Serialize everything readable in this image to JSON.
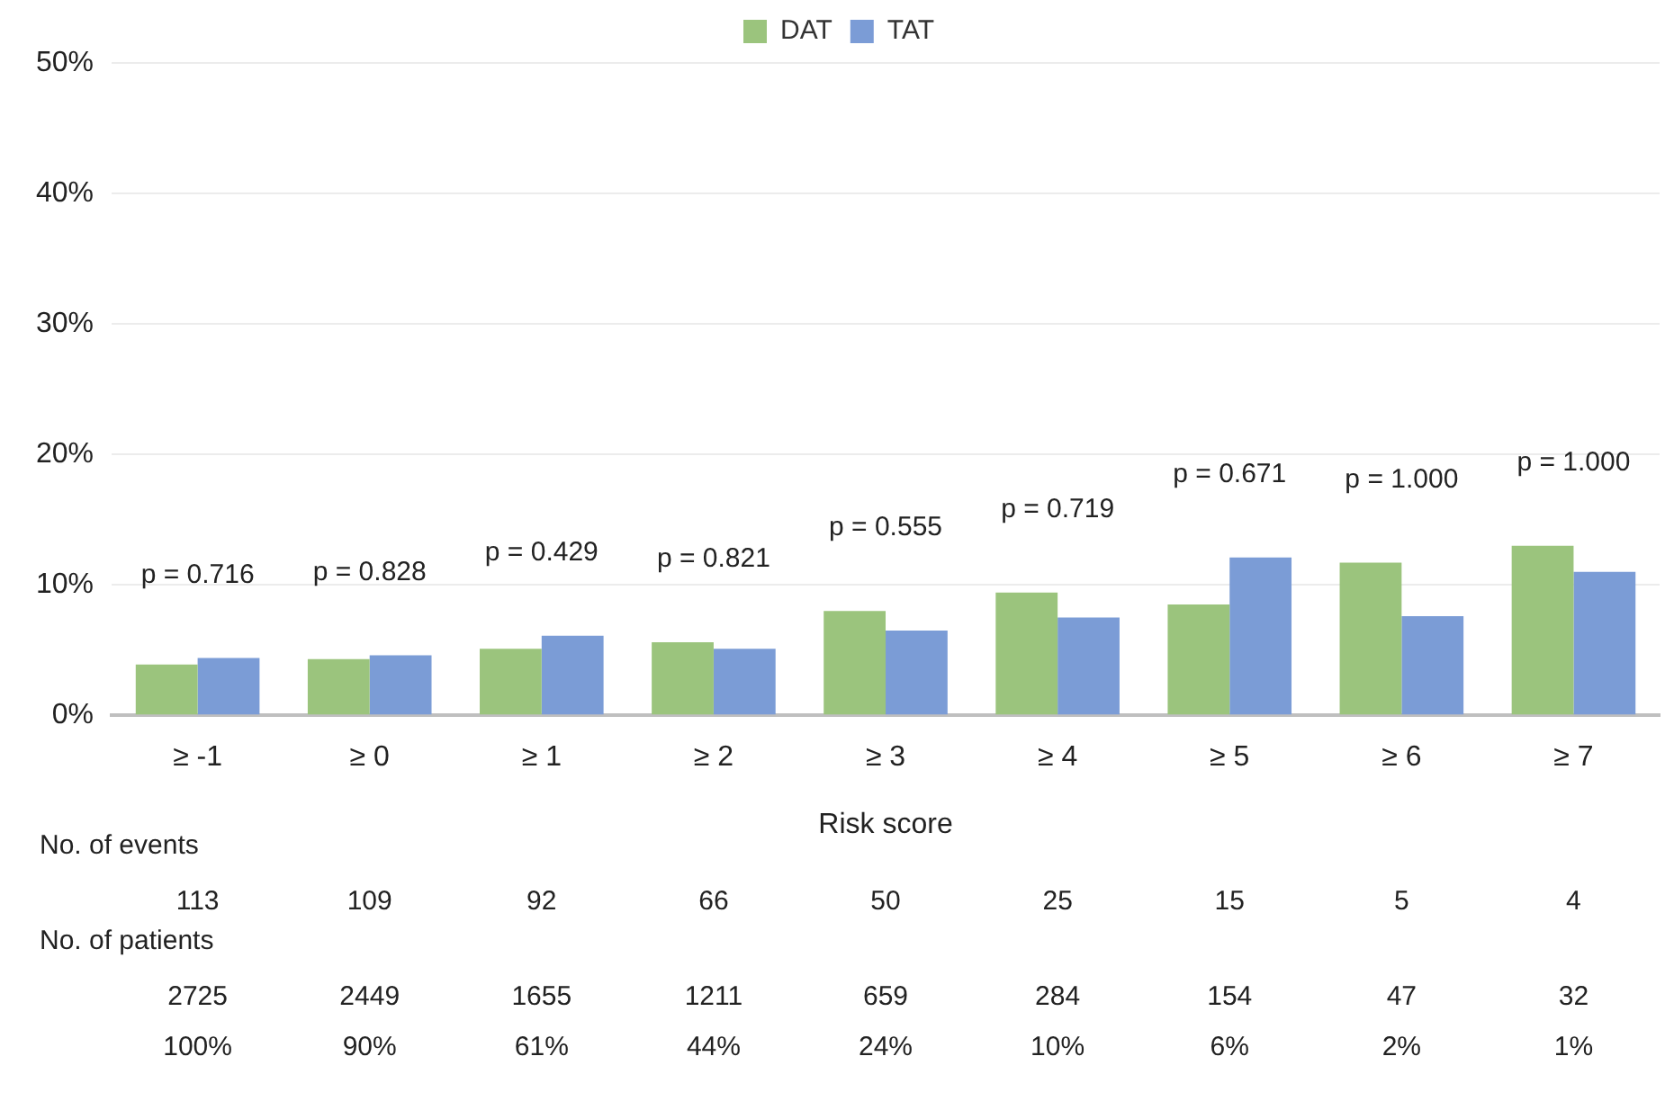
{
  "chart_data": {
    "type": "bar",
    "xlabel": "Risk score",
    "categories": [
      "≥ -1",
      "≥ 0",
      "≥ 1",
      "≥ 2",
      "≥ 3",
      "≥ 4",
      "≥ 5",
      "≥ 6",
      "≥ 7"
    ],
    "series": [
      {
        "name": "DAT",
        "color": "#9bc47d",
        "values": [
          3.9,
          4.3,
          5.1,
          5.6,
          8.0,
          9.4,
          8.5,
          11.7,
          13.0
        ]
      },
      {
        "name": "TAT",
        "color": "#7b9cd6",
        "values": [
          4.4,
          4.6,
          6.1,
          5.1,
          6.5,
          7.5,
          12.1,
          7.6,
          11.0
        ]
      }
    ],
    "ylim": [
      0,
      50
    ],
    "yticks": [
      {
        "value": 0,
        "label": "0%"
      },
      {
        "value": 10,
        "label": "10%"
      },
      {
        "value": 20,
        "label": "20%"
      },
      {
        "value": 30,
        "label": "30%"
      },
      {
        "value": 40,
        "label": "40%"
      },
      {
        "value": 50,
        "label": "50%"
      }
    ],
    "grid": "y",
    "legend": "top",
    "annotations": [
      "p = 0.716",
      "p = 0.828",
      "p = 0.429",
      "p = 0.821",
      "p = 0.555",
      "p = 0.719",
      "p = 0.671",
      "p = 1.000",
      "p = 1.000",
      "No. of events",
      "113",
      "109",
      "92",
      "66",
      "50",
      "25",
      "15",
      "5",
      "4",
      "No. of patients",
      "2725",
      "2449",
      "1655",
      "1211",
      "659",
      "284",
      "154",
      "47",
      "32",
      "100%",
      "90%",
      "61%",
      "44%",
      "24%",
      "10%",
      "6%",
      "2%",
      "1%"
    ]
  }
}
